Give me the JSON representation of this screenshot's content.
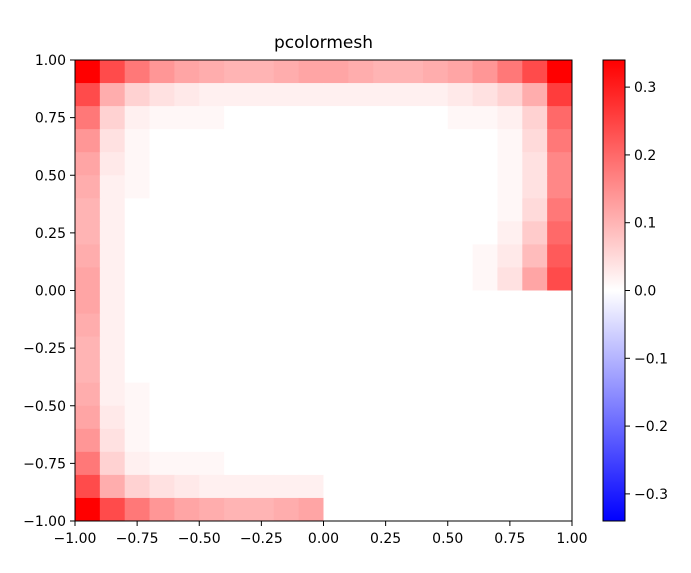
{
  "chart_data": {
    "type": "heatmap",
    "title": "pcolormesh",
    "xlabel": "",
    "ylabel": "",
    "xlim": [
      -1.0,
      1.0
    ],
    "ylim": [
      -1.0,
      1.0
    ],
    "x_ticks": [
      "−1.00",
      "−0.75",
      "−0.50",
      "−0.25",
      "0.00",
      "0.25",
      "0.50",
      "0.75",
      "1.00"
    ],
    "y_ticks": [
      "−1.00",
      "−0.75",
      "−0.50",
      "−0.25",
      "0.00",
      "0.25",
      "0.50",
      "0.75",
      "1.00"
    ],
    "x_tick_values": [
      -1.0,
      -0.75,
      -0.5,
      -0.25,
      0.0,
      0.25,
      0.5,
      0.75,
      1.0
    ],
    "y_tick_values": [
      -1.0,
      -0.75,
      -0.5,
      -0.25,
      0.0,
      0.25,
      0.5,
      0.75,
      1.0
    ],
    "grid": false,
    "colormap": "bwr",
    "colors": {
      "low": "#0000ff",
      "mid": "#ffffff",
      "high": "#ff0000"
    },
    "colorbar": {
      "vmin": -0.34,
      "vmax": 0.34,
      "ticks": [
        "0.3",
        "0.2",
        "0.1",
        "0.0",
        "−0.1",
        "−0.2",
        "−0.3"
      ],
      "tick_values": [
        0.3,
        0.2,
        0.1,
        0.0,
        -0.1,
        -0.2,
        -0.3
      ]
    },
    "grid_size": [
      20,
      20
    ],
    "values": [
      [
        0.34,
        0.24,
        0.18,
        0.14,
        0.12,
        0.11,
        0.1,
        0.1,
        0.11,
        0.12,
        0.12,
        0.11,
        0.1,
        0.1,
        0.11,
        0.12,
        0.14,
        0.18,
        0.24,
        0.34
      ],
      [
        0.24,
        0.11,
        0.06,
        0.04,
        0.03,
        0.02,
        0.02,
        0.02,
        0.02,
        0.02,
        0.02,
        0.02,
        0.02,
        0.02,
        0.02,
        0.03,
        0.04,
        0.06,
        0.11,
        0.26
      ],
      [
        0.18,
        0.06,
        0.02,
        0.01,
        0.01,
        0.01,
        0.0,
        0.0,
        0.0,
        0.0,
        0.0,
        0.0,
        0.0,
        0.0,
        0.0,
        0.01,
        0.01,
        0.02,
        0.06,
        0.2
      ],
      [
        0.14,
        0.04,
        0.01,
        0.0,
        0.0,
        0.0,
        0.0,
        0.0,
        0.0,
        0.0,
        0.0,
        0.0,
        0.0,
        0.0,
        0.0,
        0.0,
        0.0,
        0.01,
        0.05,
        0.18
      ],
      [
        0.12,
        0.03,
        0.01,
        0.0,
        0.0,
        0.0,
        0.0,
        0.0,
        0.0,
        0.0,
        0.0,
        0.0,
        0.0,
        0.0,
        0.0,
        0.0,
        0.0,
        0.01,
        0.04,
        0.16
      ],
      [
        0.11,
        0.02,
        0.01,
        0.0,
        0.0,
        0.0,
        0.0,
        0.0,
        0.0,
        0.0,
        0.0,
        0.0,
        0.0,
        0.0,
        0.0,
        0.0,
        0.0,
        0.01,
        0.04,
        0.16
      ],
      [
        0.1,
        0.02,
        0.0,
        0.0,
        0.0,
        0.0,
        0.0,
        0.0,
        0.0,
        0.0,
        0.0,
        0.0,
        0.0,
        0.0,
        0.0,
        0.0,
        0.0,
        0.01,
        0.05,
        0.18
      ],
      [
        0.1,
        0.02,
        0.0,
        0.0,
        0.0,
        0.0,
        0.0,
        0.0,
        0.0,
        0.0,
        0.0,
        0.0,
        0.0,
        0.0,
        0.0,
        0.0,
        0.0,
        0.02,
        0.07,
        0.2
      ],
      [
        0.11,
        0.02,
        0.0,
        0.0,
        0.0,
        0.0,
        0.0,
        0.0,
        0.0,
        0.0,
        0.0,
        0.0,
        0.0,
        0.0,
        0.0,
        0.0,
        0.01,
        0.03,
        0.09,
        0.22
      ],
      [
        0.12,
        0.02,
        0.0,
        0.0,
        0.0,
        0.0,
        0.0,
        0.0,
        0.0,
        0.0,
        0.0,
        0.0,
        0.0,
        0.0,
        0.0,
        0.0,
        0.01,
        0.04,
        0.12,
        0.24
      ],
      [
        0.12,
        0.02,
        0.0,
        0.0,
        0.0,
        0.0,
        0.0,
        0.0,
        0.0,
        0.0,
        0.0,
        0.0,
        0.0,
        0.0,
        0.0,
        0.0,
        0.0,
        0.0,
        0.0,
        0.0
      ],
      [
        0.11,
        0.02,
        0.0,
        0.0,
        0.0,
        0.0,
        0.0,
        0.0,
        0.0,
        0.0,
        0.0,
        0.0,
        0.0,
        0.0,
        0.0,
        0.0,
        0.0,
        0.0,
        0.0,
        0.0
      ],
      [
        0.1,
        0.02,
        0.0,
        0.0,
        0.0,
        0.0,
        0.0,
        0.0,
        0.0,
        0.0,
        0.0,
        0.0,
        0.0,
        0.0,
        0.0,
        0.0,
        0.0,
        0.0,
        0.0,
        0.0
      ],
      [
        0.1,
        0.02,
        0.0,
        0.0,
        0.0,
        0.0,
        0.0,
        0.0,
        0.0,
        0.0,
        0.0,
        0.0,
        0.0,
        0.0,
        0.0,
        0.0,
        0.0,
        0.0,
        0.0,
        0.0
      ],
      [
        0.11,
        0.02,
        0.01,
        0.0,
        0.0,
        0.0,
        0.0,
        0.0,
        0.0,
        0.0,
        0.0,
        0.0,
        0.0,
        0.0,
        0.0,
        0.0,
        0.0,
        0.0,
        0.0,
        0.0
      ],
      [
        0.12,
        0.03,
        0.01,
        0.0,
        0.0,
        0.0,
        0.0,
        0.0,
        0.0,
        0.0,
        0.0,
        0.0,
        0.0,
        0.0,
        0.0,
        0.0,
        0.0,
        0.0,
        0.0,
        0.0
      ],
      [
        0.14,
        0.04,
        0.01,
        0.0,
        0.0,
        0.0,
        0.0,
        0.0,
        0.0,
        0.0,
        0.0,
        0.0,
        0.0,
        0.0,
        0.0,
        0.0,
        0.0,
        0.0,
        0.0,
        0.0
      ],
      [
        0.18,
        0.06,
        0.02,
        0.01,
        0.01,
        0.01,
        0.0,
        0.0,
        0.0,
        0.0,
        0.0,
        0.0,
        0.0,
        0.0,
        0.0,
        0.0,
        0.0,
        0.0,
        0.0,
        0.0
      ],
      [
        0.24,
        0.11,
        0.06,
        0.04,
        0.03,
        0.02,
        0.02,
        0.02,
        0.02,
        0.02,
        0.0,
        0.0,
        0.0,
        0.0,
        0.0,
        0.0,
        0.0,
        0.0,
        0.0,
        0.0
      ],
      [
        0.34,
        0.24,
        0.18,
        0.14,
        0.12,
        0.11,
        0.1,
        0.1,
        0.11,
        0.12,
        0.0,
        0.0,
        0.0,
        0.0,
        0.0,
        0.0,
        0.0,
        0.0,
        0.0,
        0.0
      ]
    ]
  }
}
